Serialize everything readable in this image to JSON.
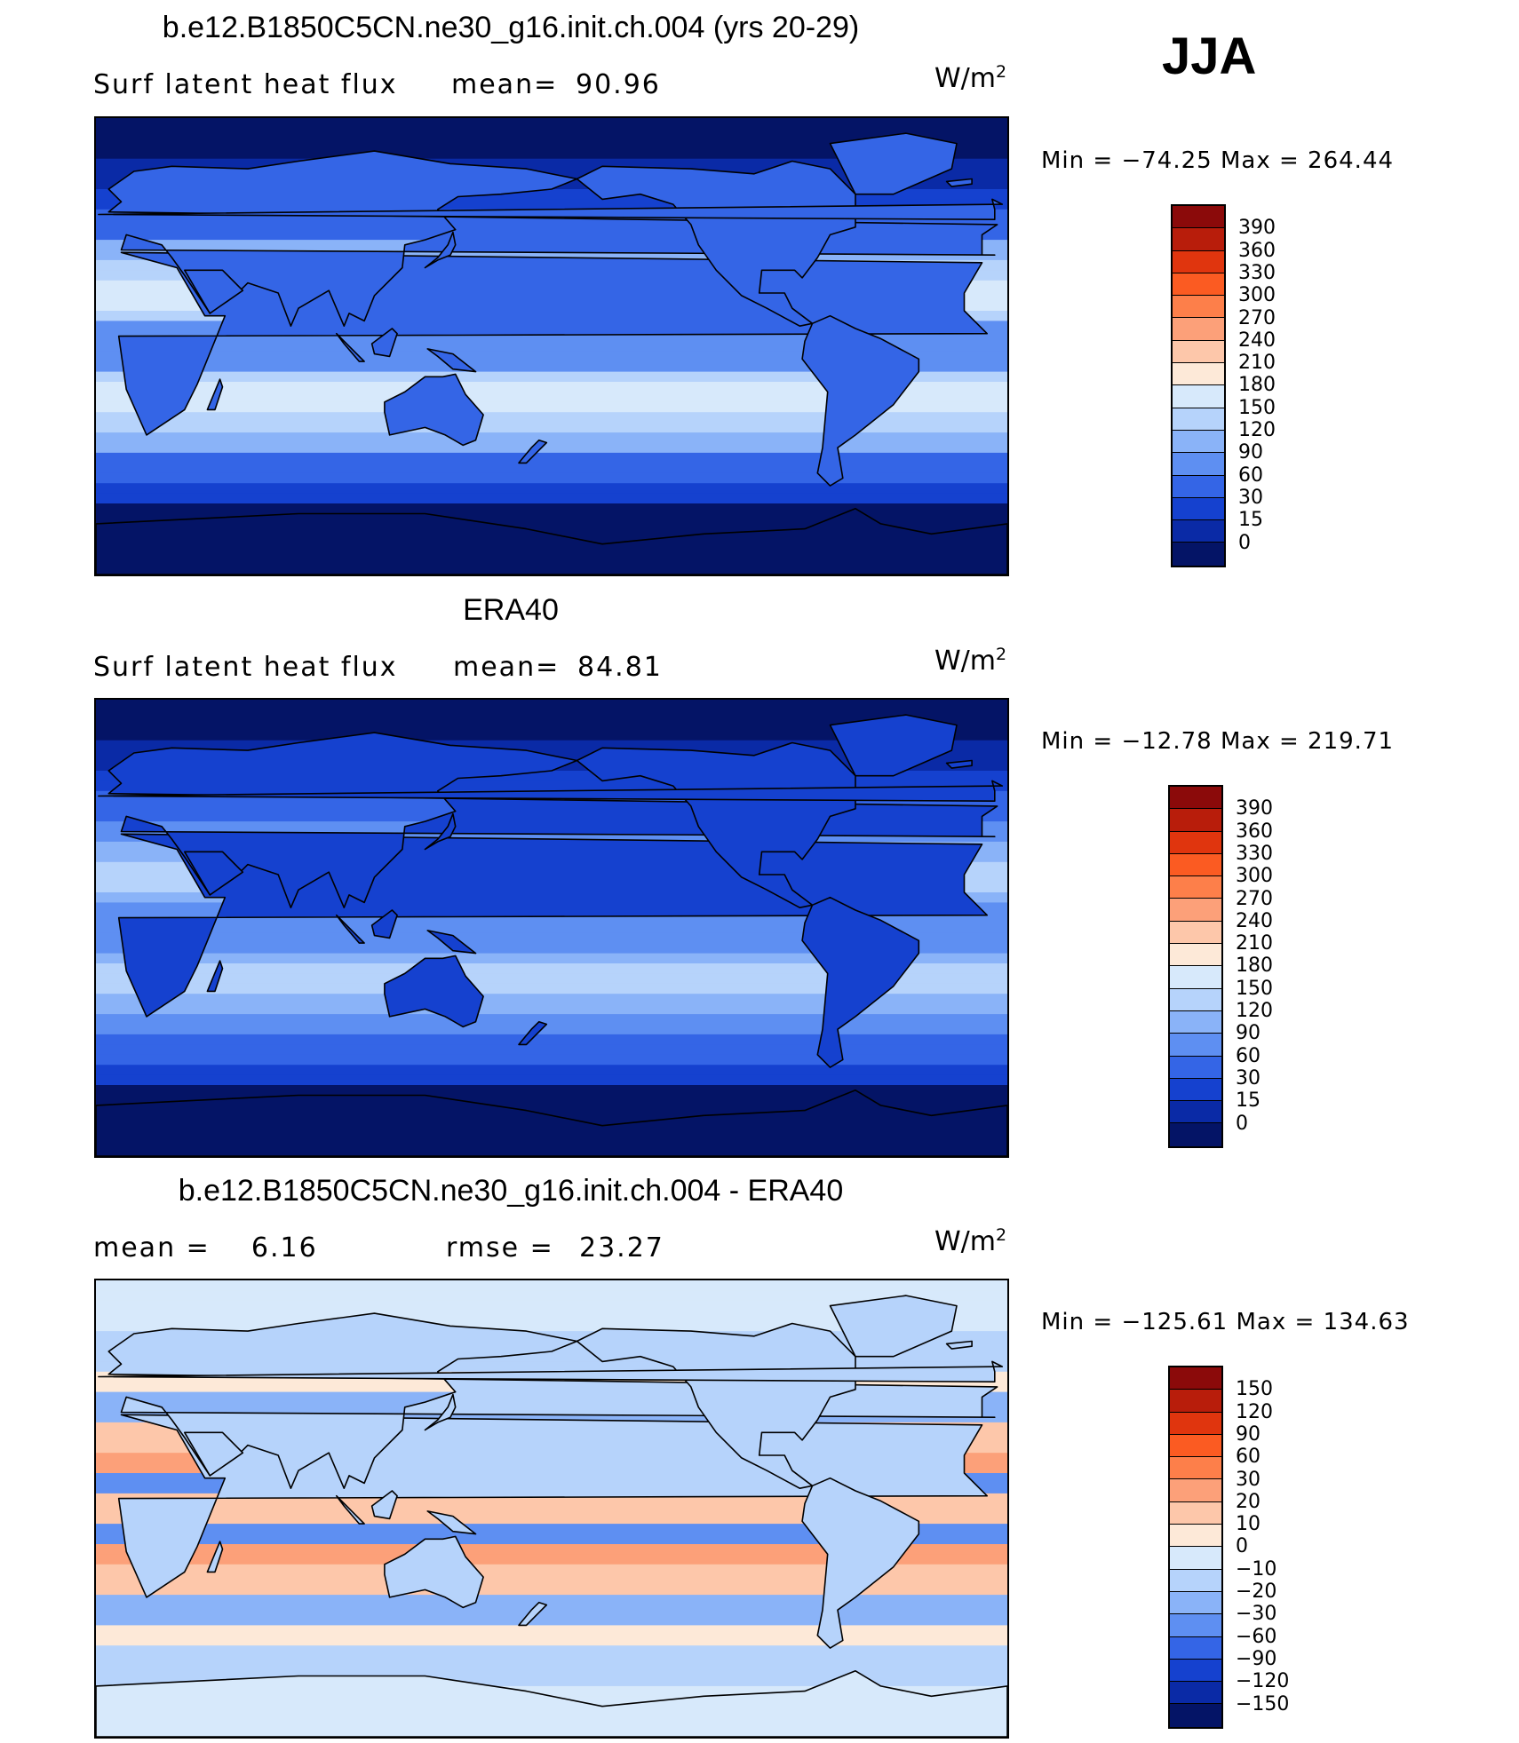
{
  "season": "JJA",
  "panels": [
    {
      "title": "b.e12.B1850C5CN.ne30_g16.init.ch.004 (yrs 20-29)",
      "left_text": "Surf latent heat flux",
      "stat_label": "mean=",
      "stat_value": "90.96",
      "units": "W/m",
      "units_sup": "2",
      "min_label": "Min",
      "min_value": "−74.25",
      "max_label": "Max",
      "max_value": "264.44",
      "colorbar_labels": [
        "390",
        "360",
        "330",
        "300",
        "270",
        "240",
        "210",
        "180",
        "150",
        "120",
        "90",
        "60",
        "30",
        "15",
        "0"
      ],
      "colorbar_colors": [
        "#8b0a0a",
        "#b81d0b",
        "#e0350e",
        "#fb5b22",
        "#fd7f4a",
        "#fca079",
        "#fdc7aa",
        "#fde9d8",
        "#d7e9fb",
        "#b6d3fb",
        "#8ab3f8",
        "#5e8ff2",
        "#3465e6",
        "#1541cf",
        "#0a2aa6",
        "#041466"
      ],
      "field": "model"
    },
    {
      "title": "ERA40",
      "left_text": "Surf latent heat flux",
      "stat_label": "mean=",
      "stat_value": "84.81",
      "units": "W/m",
      "units_sup": "2",
      "min_label": "Min",
      "min_value": "−12.78",
      "max_label": "Max",
      "max_value": "219.71",
      "colorbar_labels": [
        "390",
        "360",
        "330",
        "300",
        "270",
        "240",
        "210",
        "180",
        "150",
        "120",
        "90",
        "60",
        "30",
        "15",
        "0"
      ],
      "colorbar_colors": [
        "#8b0a0a",
        "#b81d0b",
        "#e0350e",
        "#fb5b22",
        "#fd7f4a",
        "#fca079",
        "#fdc7aa",
        "#fde9d8",
        "#d7e9fb",
        "#b6d3fb",
        "#8ab3f8",
        "#5e8ff2",
        "#3465e6",
        "#1541cf",
        "#0a2aa6",
        "#041466"
      ],
      "field": "obs"
    },
    {
      "title": "b.e12.B1850C5CN.ne30_g16.init.ch.004 - ERA40",
      "left_text": "mean =    6.16",
      "stat_label": "rmse =",
      "stat_value": "23.27",
      "units": "W/m",
      "units_sup": "2",
      "min_label": "Min",
      "min_value": "−125.61",
      "max_label": "Max",
      "max_value": "134.63",
      "colorbar_labels": [
        "150",
        "120",
        "90",
        "60",
        "30",
        "20",
        "10",
        "0",
        "−10",
        "−20",
        "−30",
        "−60",
        "−90",
        "−120",
        "−150"
      ],
      "colorbar_colors": [
        "#8b0a0a",
        "#b81d0b",
        "#e0350e",
        "#fb5b22",
        "#fd7f4a",
        "#fca079",
        "#fdc7aa",
        "#fde9d8",
        "#d7e9fb",
        "#b6d3fb",
        "#8ab3f8",
        "#5e8ff2",
        "#3465e6",
        "#1541cf",
        "#0a2aa6",
        "#041466"
      ],
      "field": "diff"
    }
  ]
}
